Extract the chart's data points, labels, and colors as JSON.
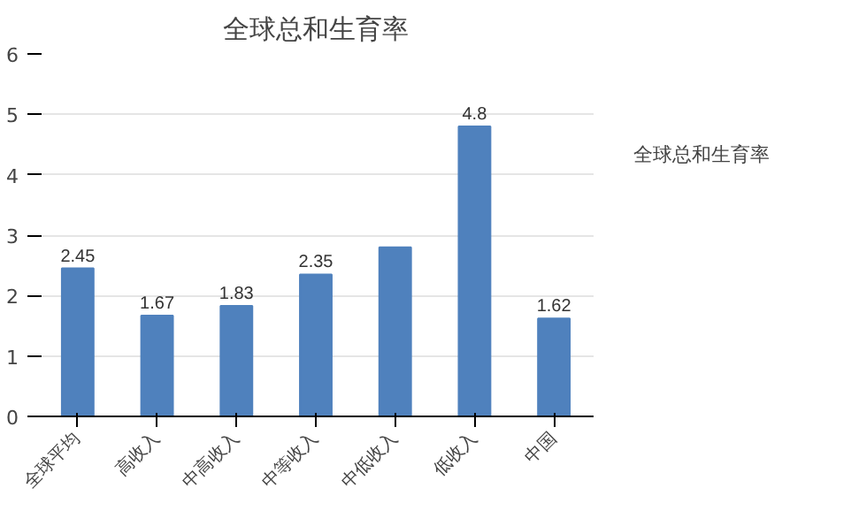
{
  "chart_data": {
    "type": "bar",
    "title": "全球总和生育率",
    "categories": [
      "全球平均",
      "高收入",
      "中高收入",
      "中等收入",
      "中低收入",
      "低收入",
      "中国"
    ],
    "series": [
      {
        "name": "全球总和生育率",
        "color": "#4f81bd",
        "values": [
          2.45,
          1.67,
          1.83,
          2.35,
          2.8,
          4.8,
          1.62
        ],
        "value_labels": [
          "2.45",
          "1.67",
          "1.83",
          "2.35",
          null,
          "4.8",
          "1.62"
        ]
      }
    ],
    "ylim": [
      0,
      6
    ],
    "yticks": [
      0,
      1,
      2,
      3,
      4,
      5,
      6
    ],
    "grid": "y",
    "legend": "right"
  }
}
